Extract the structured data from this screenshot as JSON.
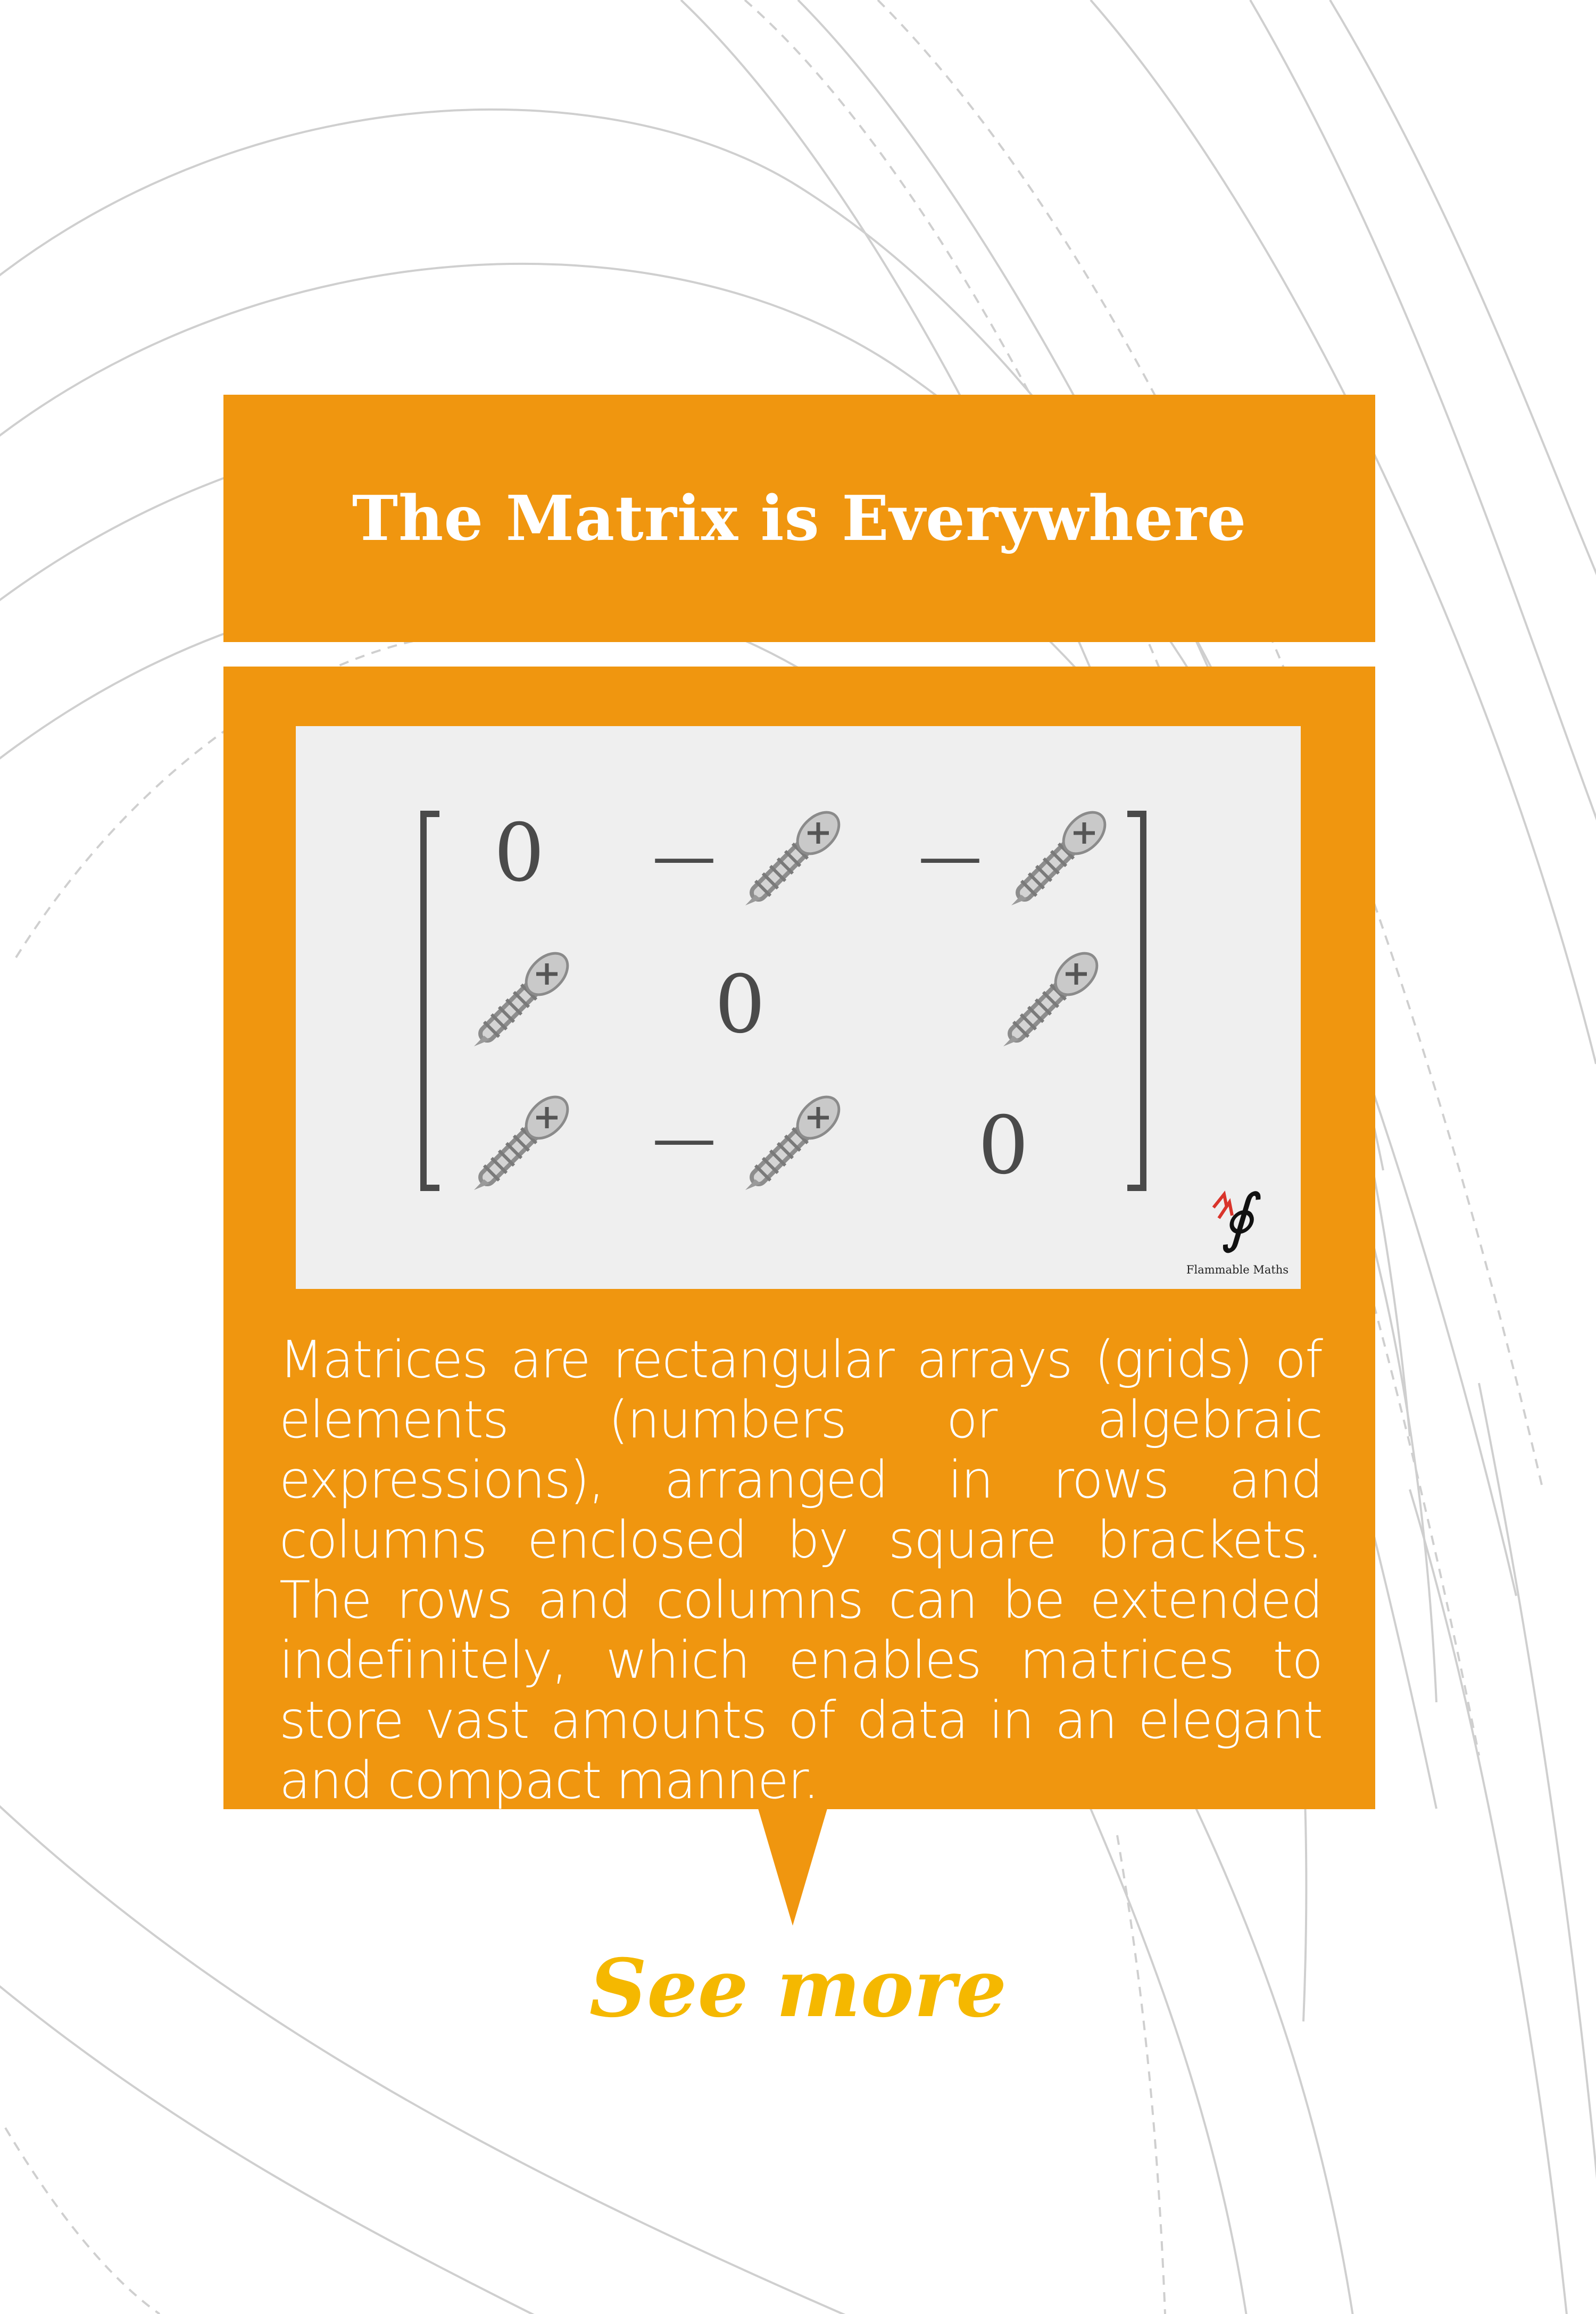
{
  "title": "The Matrix is Everywhere",
  "matrix": {
    "cells": [
      [
        "0",
        "−screw",
        "−screw"
      ],
      [
        "screw",
        "0",
        "screw"
      ],
      [
        "screw",
        "−screw",
        "0"
      ]
    ],
    "zero": "0",
    "minus": "—"
  },
  "brand": {
    "name": "Flammable Maths",
    "icon": "integral-flame-logo"
  },
  "description": "Matrices are rectangular arrays (grids) of elements (numbers or algebraic expressions), arranged in rows and columns enclosed by square brackets. The rows and columns can be extended indefinitely, which enables matrices to store vast amounts of data in an elegant and compact manner.",
  "see_more": "See more",
  "colors": {
    "accent": "#f0960f",
    "link": "#f5b800",
    "panel": "#efefef",
    "background": "#ffffff"
  }
}
